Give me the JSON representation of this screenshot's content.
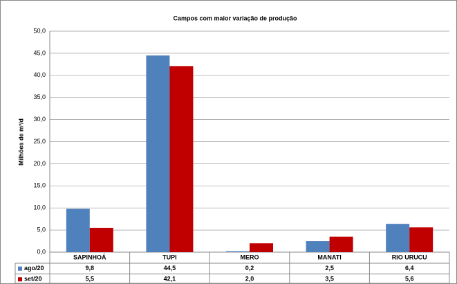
{
  "chart_data": {
    "type": "bar",
    "title": "Campos com maior variação de produção",
    "y_label": "Milhões de m³/d",
    "categories": [
      "SAPINHOÁ",
      "TUPI",
      "MERO",
      "MANATI",
      "RIO URUCU"
    ],
    "series": [
      {
        "name": "ago/20",
        "color": "#4f81bd",
        "values": [
          9.8,
          44.5,
          0.2,
          2.5,
          6.4
        ],
        "value_labels": [
          "9,8",
          "44,5",
          "0,2",
          "2,5",
          "6,4"
        ]
      },
      {
        "name": "set/20",
        "color": "#c00000",
        "values": [
          5.5,
          42.1,
          2.0,
          3.5,
          5.6
        ],
        "value_labels": [
          "5,5",
          "42,1",
          "2,0",
          "3,5",
          "5,6"
        ]
      }
    ],
    "ylim": [
      0,
      50
    ],
    "yticks": [
      {
        "value": 0,
        "label": "0,0"
      },
      {
        "value": 5,
        "label": "5,0"
      },
      {
        "value": 10,
        "label": "10,0"
      },
      {
        "value": 15,
        "label": "15,0"
      },
      {
        "value": 20,
        "label": "20,0"
      },
      {
        "value": 25,
        "label": "25,0"
      },
      {
        "value": 30,
        "label": "30,0"
      },
      {
        "value": 35,
        "label": "35,0"
      },
      {
        "value": 40,
        "label": "40,0"
      },
      {
        "value": 45,
        "label": "45,0"
      },
      {
        "value": 50,
        "label": "50,0"
      }
    ],
    "grid": true
  }
}
